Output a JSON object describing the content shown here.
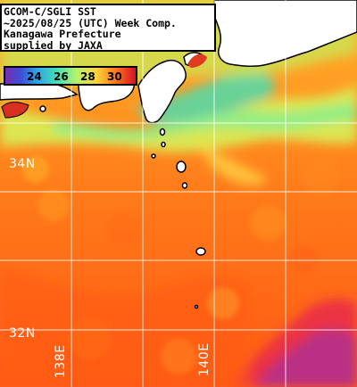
{
  "caption": {
    "line1": "GCOM-C/SGLI SST",
    "line2": "~2025/08/25 (UTC) Week Comp.",
    "line3": "Kanagawa Prefecture",
    "line4": "supplied by JAXA"
  },
  "colorbar": {
    "ticks": [
      "24",
      "26",
      "28",
      "30"
    ],
    "colors": [
      "#7b2cb0",
      "#3c4fd6",
      "#2fa7e6",
      "#46e0b4",
      "#b8f26a",
      "#ffd23a",
      "#ff7a1a",
      "#d8102a"
    ]
  },
  "grid": {
    "lat_labels": [
      "34N",
      "32N"
    ],
    "lon_labels": [
      "138E",
      "140E"
    ]
  }
}
